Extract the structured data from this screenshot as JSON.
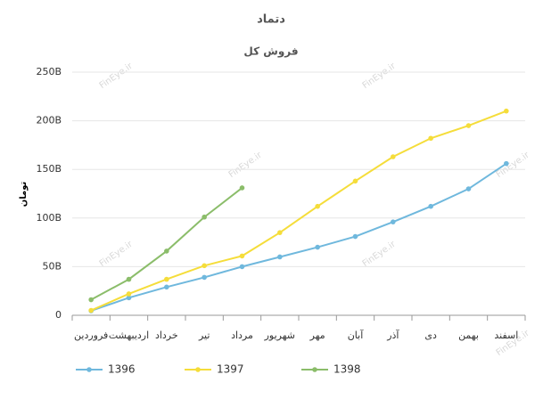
{
  "chart_data": {
    "type": "line",
    "title": "دتماد",
    "subtitle": "فروش کل",
    "y_label": "تومان",
    "watermark": "FinEye.ir",
    "categories": [
      "فروردین",
      "اردیبهشت",
      "خرداد",
      "تیر",
      "مرداد",
      "شهریور",
      "مهر",
      "آبان",
      "آذر",
      "دی",
      "بهمن",
      "اسفند"
    ],
    "series": [
      {
        "name": "1396",
        "color": "#6fb8dd",
        "values": [
          4.6,
          18,
          29,
          39,
          50,
          60,
          70,
          81,
          96,
          112,
          130,
          156
        ]
      },
      {
        "name": "1397",
        "color": "#f5dd3a",
        "values": [
          5,
          22,
          37,
          51,
          61,
          85,
          112,
          138,
          163,
          182,
          195,
          210
        ]
      },
      {
        "name": "1398",
        "color": "#8bbd6a",
        "values": [
          16,
          37,
          66,
          101,
          131,
          null,
          null,
          null,
          null,
          null,
          null,
          null
        ]
      }
    ],
    "ylim": [
      0,
      250
    ],
    "yticks": [
      0,
      {
        "value": 50,
        "label": "50B"
      },
      {
        "value": 100,
        "label": "100B"
      },
      {
        "value": 150,
        "label": "150B"
      },
      {
        "value": 200,
        "label": "200B"
      },
      {
        "value": 250,
        "label": "250B"
      }
    ],
    "grid": true,
    "legend": "bottom"
  }
}
